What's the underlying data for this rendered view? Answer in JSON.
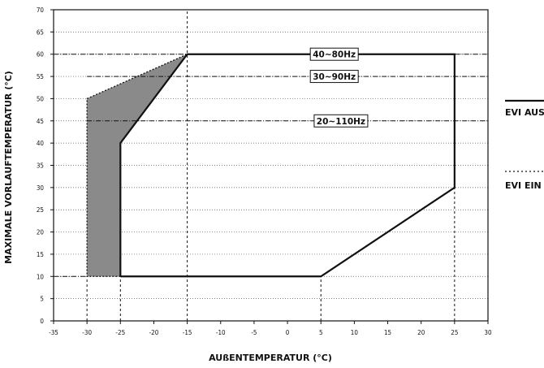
{
  "chart_data": {
    "type": "area",
    "xlabel": "AUßENTEMPERATUR (°C)",
    "ylabel": "MAXIMALE VORLAUFTEMPERATUR (°C)",
    "xlim": [
      -35,
      30
    ],
    "ylim": [
      0,
      70
    ],
    "x_ticks": [
      -35,
      -30,
      -25,
      -20,
      -15,
      -10,
      -5,
      0,
      5,
      10,
      15,
      20,
      25,
      30
    ],
    "y_ticks": [
      0,
      5,
      10,
      15,
      20,
      25,
      30,
      35,
      40,
      45,
      50,
      55,
      60,
      65,
      70
    ],
    "grid": true,
    "series": [
      {
        "name": "EVI AUS",
        "line_style": "solid",
        "points": [
          [
            -25,
            10
          ],
          [
            5,
            10
          ],
          [
            25,
            30
          ],
          [
            25,
            60
          ],
          [
            -15,
            60
          ],
          [
            -25,
            40
          ],
          [
            -25,
            10
          ]
        ]
      },
      {
        "name": "EVI EIN",
        "line_style": "dotted",
        "fill": "#8a8a8a",
        "points": [
          [
            -30,
            10
          ],
          [
            -25,
            10
          ],
          [
            -25,
            40
          ],
          [
            -15,
            60
          ],
          [
            -30,
            50
          ],
          [
            -30,
            10
          ]
        ]
      }
    ],
    "frequency_bands": [
      {
        "label": "40~80Hz",
        "y": 60,
        "x": -15
      },
      {
        "label": "30~90Hz",
        "y": 55,
        "x": -30
      },
      {
        "label": "20~110Hz",
        "y": 45,
        "x": -30
      }
    ],
    "reference_lines": {
      "vertical": [
        {
          "x": -30,
          "y_top": 10
        },
        {
          "x": -25,
          "y_top": 10
        },
        {
          "x": -15,
          "y_top": 70
        },
        {
          "x": 5,
          "y_top": 10
        },
        {
          "x": 25,
          "y_top": 30
        }
      ],
      "horizontal": [
        {
          "y": 10,
          "x_start": -35,
          "x_end": -30
        },
        {
          "y": 60,
          "x_start": -35,
          "x_end": -15
        }
      ]
    },
    "legend": {
      "placement": "right",
      "entries": [
        {
          "label": "EVI AUS",
          "line_style": "solid"
        },
        {
          "label": "EVI EIN",
          "line_style": "dotted"
        }
      ]
    }
  },
  "colors": {
    "outline": "#111111",
    "fill": "#8a8a8a",
    "grid": "#555555"
  }
}
